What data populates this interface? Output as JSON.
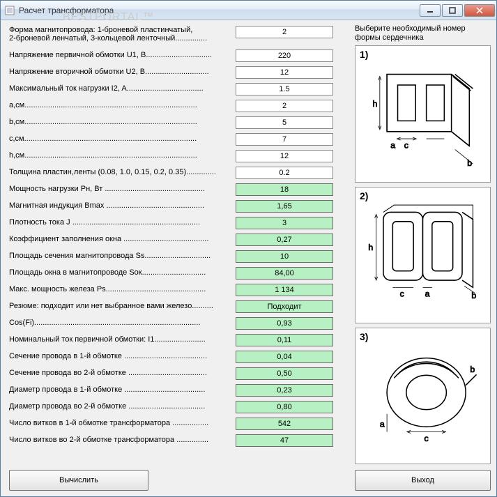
{
  "window": {
    "title": "Расчет трансформатора"
  },
  "watermark": "BESTPORTAL™",
  "rows": [
    {
      "label": "Форма магнитопровода: 1-броневой пластинчатый,\n2-броневой ленчатый, 3-кольцевой ленточный...............",
      "value": "2",
      "output": false,
      "tall": true
    },
    {
      "label": "Напряжение первичной обмотки U1, B...............................",
      "value": "220",
      "output": false
    },
    {
      "label": "Напряжение вторичной обмотки U2, B..............................",
      "value": "12",
      "output": false
    },
    {
      "label": "Максимальный ток нагрузки I2, A....................................",
      "value": "1.5",
      "output": false
    },
    {
      "label": "a,см.................................................................................",
      "value": "2",
      "output": false
    },
    {
      "label": "b,см.................................................................................",
      "value": "5",
      "output": false
    },
    {
      "label": "c,см.................................................................................",
      "value": "7",
      "output": false
    },
    {
      "label": "h,см.................................................................................",
      "value": "12",
      "output": false
    },
    {
      "label": "Толщина пластин,ленты (0.08, 1.0, 0.15, 0.2, 0.35)..............",
      "value": "0.2",
      "output": false
    },
    {
      "label": "Мощность нагрузки Pн, Вт ...............................................",
      "value": "18",
      "output": true
    },
    {
      "label": "Магнитная индукция Bmax ..............................................",
      "value": "1,65",
      "output": true
    },
    {
      "label": "Плотность тока J ............................................................",
      "value": "3",
      "output": true
    },
    {
      "label": "Коэффициент заполнения окна ........................................",
      "value": "0,27",
      "output": true
    },
    {
      "label": "Площадь сечения магнитопровода Ss...............................",
      "value": "10",
      "output": true
    },
    {
      "label": "Площадь окна в магнитопроводе Sок..............................",
      "value": "84,00",
      "output": true
    },
    {
      "label": "Макс. мощность железа Ps...............................................",
      "value": "1 134",
      "output": true
    },
    {
      "label": "Резюме: подходит или нет выбранное вами железо..........",
      "value": "Подходит",
      "output": true
    },
    {
      "label": "Cos(Fi)..............................................................................",
      "value": "0,93",
      "output": true
    },
    {
      "label": "Номинальный ток первичной обмотки: I1........................",
      "value": "0,11",
      "output": true
    },
    {
      "label": "Сечение провода в 1-й обмотке .......................................",
      "value": "0,04",
      "output": true
    },
    {
      "label": "Сечение провода во 2-й обмотке .....................................",
      "value": "0,50",
      "output": true
    },
    {
      "label": "Диаметр провода в 1-й обмотке ......................................",
      "value": "0,23",
      "output": true
    },
    {
      "label": "Диаметр провода во 2-й обмотке ....................................",
      "value": "0,80",
      "output": true
    },
    {
      "label": "Число витков в 1-й обмотке трансформатора .................",
      "value": "542",
      "output": true
    },
    {
      "label": "Число витков во 2-й обмотке трансформатора ...............",
      "value": "47",
      "output": true
    }
  ],
  "buttons": {
    "calculate": "Вычислить",
    "exit": "Выход"
  },
  "rightPanel": {
    "title": "Выберите необходимый номер формы сердечника",
    "diagrams": [
      {
        "num": "1)"
      },
      {
        "num": "2)"
      },
      {
        "num": "3)"
      }
    ]
  },
  "colors": {
    "outputBg": "#b7f0c2",
    "inputBg": "#ffffff",
    "windowBg": "#f0f0f0"
  }
}
